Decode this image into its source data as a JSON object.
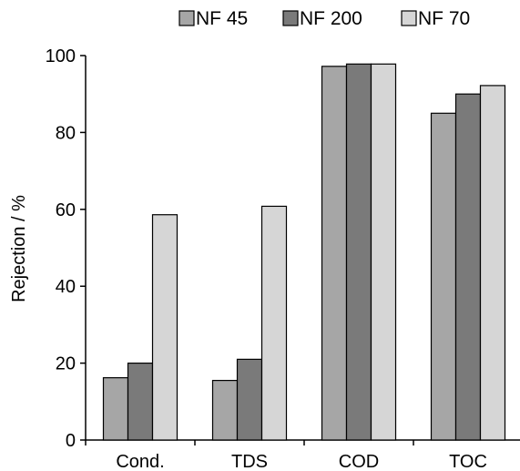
{
  "chart_data": {
    "type": "bar",
    "title": "",
    "xlabel": "",
    "ylabel": "Rejection / %",
    "ylim": [
      0,
      100
    ],
    "yticks": [
      "0",
      "20",
      "40",
      "60",
      "80",
      "100"
    ],
    "categories": [
      "Cond.",
      "TDS",
      "COD",
      "TOC"
    ],
    "series": [
      {
        "name": "NF 45",
        "color": "#a6a6a6",
        "values": [
          16.2,
          15.5,
          97.2,
          85.0
        ]
      },
      {
        "name": "NF 200",
        "color": "#7a7a7a",
        "values": [
          20.0,
          21.0,
          97.8,
          90.0
        ]
      },
      {
        "name": "NF 70",
        "color": "#d6d6d6",
        "values": [
          58.6,
          60.8,
          97.8,
          92.2
        ]
      }
    ],
    "grid": false,
    "legend_position": "top"
  }
}
